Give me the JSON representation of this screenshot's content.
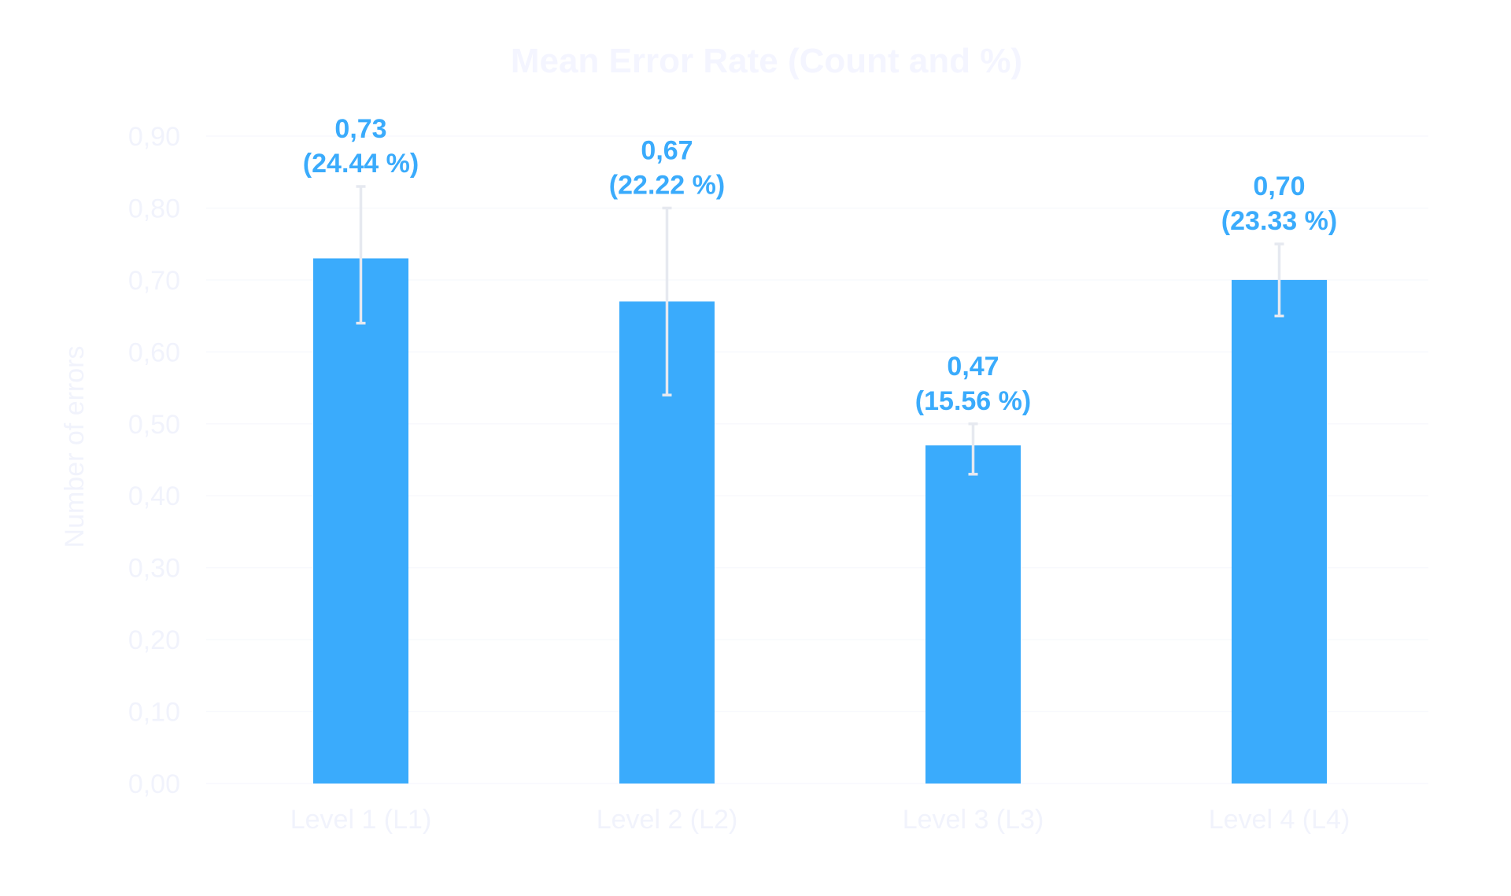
{
  "chart_data": {
    "type": "bar",
    "title": "Mean Error Rate (Count and %)",
    "ylabel": "Number of errors",
    "xlabel": "",
    "categories": [
      "Level 1 (L1)",
      "Level 2 (L2)",
      "Level 3 (L3)",
      "Level 4 (L4)"
    ],
    "series": [
      {
        "values": [
          0.73,
          0.67,
          0.47,
          0.7
        ],
        "error_low": [
          0.64,
          0.54,
          0.43,
          0.65
        ],
        "error_high": [
          0.83,
          0.8,
          0.5,
          0.75
        ],
        "labels": [
          "0,73",
          "0,67",
          "0,47",
          "0,70"
        ],
        "percent_labels": [
          "(24.44 %)",
          "(22.22 %)",
          "(15.56 %)",
          "(23.33 %)"
        ]
      }
    ],
    "ylim": [
      0,
      0.9
    ],
    "yticks": [
      "0,00",
      "0,10",
      "0,20",
      "0,30",
      "0,40",
      "0,50",
      "0,60",
      "0,70",
      "0,80",
      "0,90"
    ],
    "grid": true,
    "legend": "none",
    "colors": {
      "bar": "#3aabfc",
      "data_label": "#3aabfc",
      "error_bar": "#e6e9f0",
      "text": "#f1f3fc",
      "grid": "#f8f9fd"
    }
  }
}
